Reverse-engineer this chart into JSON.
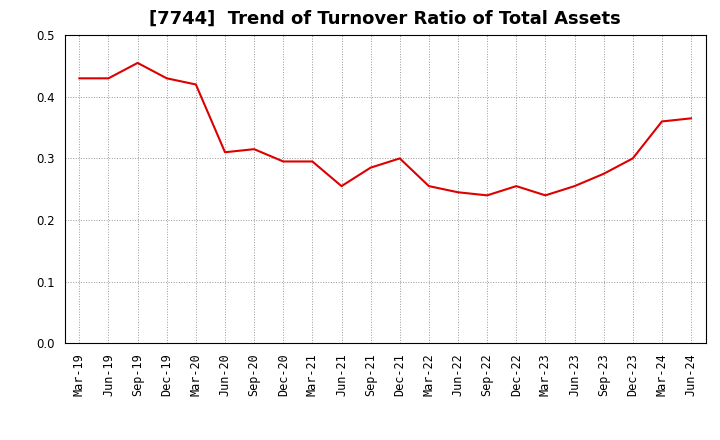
{
  "title": "[7744]  Trend of Turnover Ratio of Total Assets",
  "x_labels": [
    "Mar-19",
    "Jun-19",
    "Sep-19",
    "Dec-19",
    "Mar-20",
    "Jun-20",
    "Sep-20",
    "Dec-20",
    "Mar-21",
    "Jun-21",
    "Sep-21",
    "Dec-21",
    "Mar-22",
    "Jun-22",
    "Sep-22",
    "Dec-22",
    "Mar-23",
    "Jun-23",
    "Sep-23",
    "Dec-23",
    "Mar-24",
    "Jun-24"
  ],
  "y_values": [
    0.43,
    0.43,
    0.455,
    0.43,
    0.42,
    0.31,
    0.315,
    0.295,
    0.295,
    0.255,
    0.285,
    0.3,
    0.255,
    0.245,
    0.24,
    0.255,
    0.24,
    0.255,
    0.275,
    0.3,
    0.36,
    0.365
  ],
  "line_color": "#dd0000",
  "line_width": 1.5,
  "ylim": [
    0.0,
    0.5
  ],
  "yticks": [
    0.0,
    0.1,
    0.2,
    0.3,
    0.4,
    0.5
  ],
  "grid_color": "#999999",
  "bg_color": "#ffffff",
  "title_fontsize": 13,
  "tick_fontsize": 8.5
}
